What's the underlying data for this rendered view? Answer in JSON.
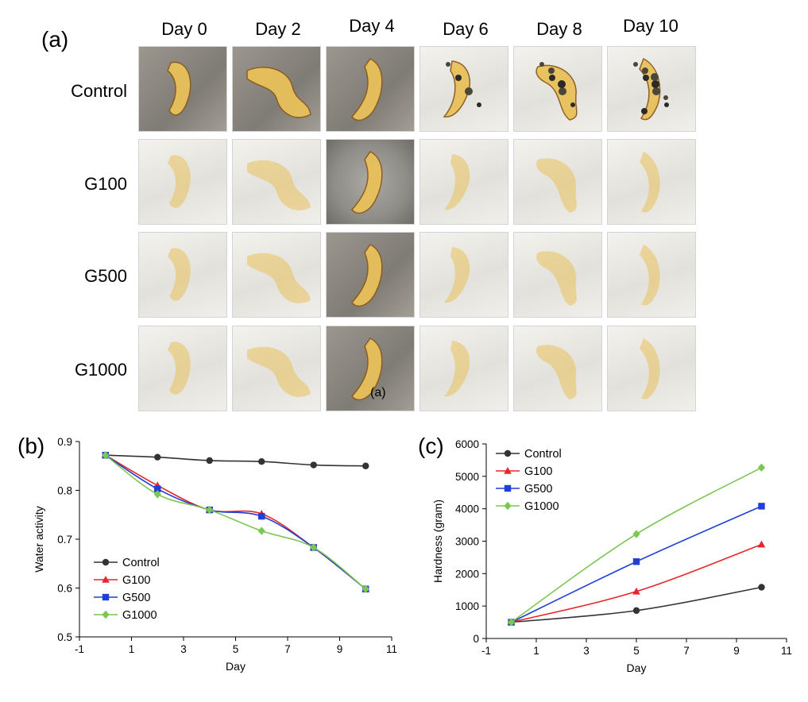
{
  "figure": {
    "panel_a_label": "(a)",
    "panel_b_label": "(b)",
    "panel_c_label": "(c)",
    "inline_tag": "(a)",
    "day_headers": [
      "Day 0",
      "Day 2",
      "Day 4",
      "Day 6",
      "Day 8",
      "Day 10"
    ],
    "treatments": [
      "Control",
      "G100",
      "G500",
      "G1000"
    ]
  },
  "colors": {
    "Control": "#333333",
    "G100": "#e8262a",
    "G500": "#1f3fd6",
    "G1000": "#7cc653",
    "pineapple": "#e9c15a",
    "paper": "#efeeea",
    "concrete": "#8d8a82"
  },
  "chart_data": [
    {
      "type": "line",
      "panel": "(b)",
      "title": "",
      "xlabel": "Day",
      "ylabel": "Water activity",
      "xlim": [
        -1,
        11
      ],
      "ylim": [
        0.5,
        0.9
      ],
      "xticks": [
        -1,
        1,
        3,
        5,
        7,
        9,
        11
      ],
      "yticks": [
        0.5,
        0.6,
        0.7,
        0.8,
        0.9
      ],
      "tick_labels_x": [
        "-1",
        "1",
        "3",
        "5",
        "7",
        "9",
        "11"
      ],
      "tick_labels_y": [
        "0.5",
        "0.6",
        "0.7",
        "0.8",
        "0.9"
      ],
      "legend": "bottom-left",
      "grid": false,
      "series": [
        {
          "name": "Control",
          "marker": "circle",
          "x": [
            0,
            2,
            4,
            6,
            8,
            10
          ],
          "y": [
            0.872,
            0.868,
            0.861,
            0.859,
            0.852,
            0.85
          ]
        },
        {
          "name": "G100",
          "marker": "triangle",
          "x": [
            0,
            2,
            4,
            6,
            8,
            10
          ],
          "y": [
            0.872,
            0.81,
            0.76,
            0.752,
            0.683,
            0.598
          ]
        },
        {
          "name": "G500",
          "marker": "square",
          "x": [
            0,
            2,
            4,
            6,
            8,
            10
          ],
          "y": [
            0.872,
            0.803,
            0.76,
            0.747,
            0.683,
            0.598
          ]
        },
        {
          "name": "G1000",
          "marker": "diamond",
          "x": [
            0,
            2,
            4,
            6,
            8,
            10
          ],
          "y": [
            0.872,
            0.792,
            0.76,
            0.717,
            0.683,
            0.598
          ]
        }
      ]
    },
    {
      "type": "line",
      "panel": "(c)",
      "title": "",
      "xlabel": "Day",
      "ylabel": "Hardness (gram)",
      "xlim": [
        -1,
        11
      ],
      "ylim": [
        0,
        6000
      ],
      "xticks": [
        -1,
        1,
        3,
        5,
        7,
        9,
        11
      ],
      "yticks": [
        0,
        1000,
        2000,
        3000,
        4000,
        5000,
        6000
      ],
      "tick_labels_x": [
        "-1",
        "1",
        "3",
        "5",
        "7",
        "9",
        "11"
      ],
      "tick_labels_y": [
        "0",
        "1000",
        "2000",
        "3000",
        "4000",
        "5000",
        "6000"
      ],
      "legend": "top-left",
      "grid": false,
      "series": [
        {
          "name": "Control",
          "marker": "circle",
          "x": [
            0,
            5,
            10
          ],
          "y": [
            500,
            860,
            1580
          ]
        },
        {
          "name": "G100",
          "marker": "triangle",
          "x": [
            0,
            5,
            10
          ],
          "y": [
            500,
            1450,
            2900
          ]
        },
        {
          "name": "G500",
          "marker": "square",
          "x": [
            0,
            5,
            10
          ],
          "y": [
            500,
            2370,
            4080
          ]
        },
        {
          "name": "G1000",
          "marker": "diamond",
          "x": [
            0,
            5,
            10
          ],
          "y": [
            500,
            3220,
            5270
          ]
        }
      ]
    }
  ]
}
